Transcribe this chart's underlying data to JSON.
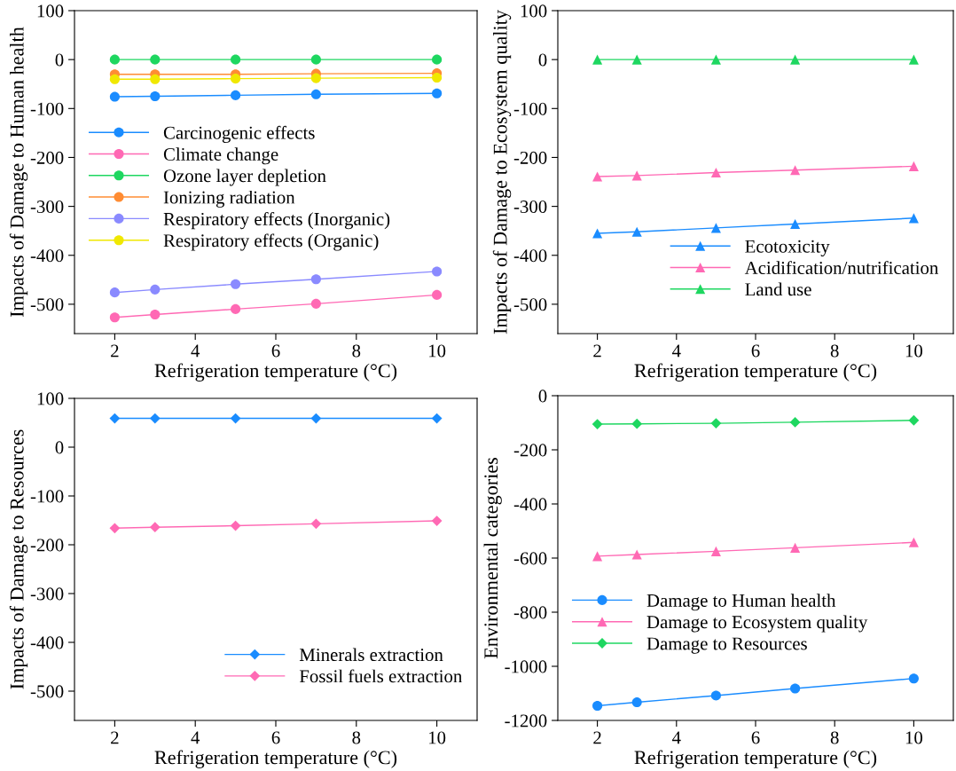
{
  "chart_data": [
    {
      "type": "line",
      "xlabel": "Refrigeration temperature (°C)",
      "ylabel": "Impacts of Damage to Human health",
      "x": [
        2,
        3,
        5,
        7,
        10
      ],
      "xlim": [
        1,
        11
      ],
      "xticks": [
        2,
        4,
        6,
        8,
        10
      ],
      "ylim": [
        -560,
        100
      ],
      "yticks": [
        100,
        0,
        -100,
        -200,
        -300,
        -400,
        -500
      ],
      "marker": "circle",
      "legend": "center left",
      "grid": false,
      "series": [
        {
          "name": "Carcinogenic effects",
          "color": "#1a8cff",
          "values": [
            -76,
            -75,
            -73,
            -71,
            -69
          ]
        },
        {
          "name": "Climate change",
          "color": "#ff69b4",
          "values": [
            -527,
            -521,
            -510,
            -499,
            -481
          ]
        },
        {
          "name": "Ozone layer depletion",
          "color": "#1ed760",
          "values": [
            0,
            0,
            0,
            0,
            0
          ]
        },
        {
          "name": "Ionizing radiation",
          "color": "#ff8c33",
          "values": [
            -30,
            -30,
            -30,
            -29,
            -28
          ]
        },
        {
          "name": "Respiratory effects (Inorganic)",
          "color": "#8a8aff",
          "values": [
            -476,
            -470,
            -459,
            -449,
            -433
          ]
        },
        {
          "name": "Respiratory effects (Organic)",
          "color": "#f0e800",
          "values": [
            -40,
            -40,
            -39,
            -38,
            -37
          ]
        }
      ]
    },
    {
      "type": "line",
      "xlabel": "Refrigeration temperature (°C)",
      "ylabel": "Impacts of Damage to Ecosystem quality",
      "x": [
        2,
        3,
        5,
        7,
        10
      ],
      "xlim": [
        1,
        11
      ],
      "xticks": [
        2,
        4,
        6,
        8,
        10
      ],
      "ylim": [
        -560,
        100
      ],
      "yticks": [
        100,
        0,
        -100,
        -200,
        -300,
        -400,
        -500
      ],
      "marker": "triangle",
      "legend": "lower right",
      "grid": false,
      "series": [
        {
          "name": "Ecotoxicity",
          "color": "#1a8cff",
          "values": [
            -355,
            -352,
            -344,
            -336,
            -324
          ]
        },
        {
          "name": "Acidification/nutrification",
          "color": "#ff69b4",
          "values": [
            -239,
            -237,
            -231,
            -226,
            -218
          ]
        },
        {
          "name": "Land use",
          "color": "#1ed760",
          "values": [
            0,
            0,
            0,
            0,
            0
          ]
        }
      ]
    },
    {
      "type": "line",
      "xlabel": "Refrigeration temperature (°C)",
      "ylabel": "Impacts of Damage to Resources",
      "x": [
        2,
        3,
        5,
        7,
        10
      ],
      "xlim": [
        1,
        11
      ],
      "xticks": [
        2,
        4,
        6,
        8,
        10
      ],
      "ylim": [
        -560,
        100
      ],
      "yticks": [
        100,
        0,
        -100,
        -200,
        -300,
        -400,
        -500
      ],
      "marker": "diamond",
      "legend": "lower right",
      "grid": false,
      "series": [
        {
          "name": "Minerals extraction",
          "color": "#1a8cff",
          "values": [
            59,
            59,
            59,
            59,
            59
          ]
        },
        {
          "name": "Fossil fuels extraction",
          "color": "#ff69b4",
          "values": [
            -166,
            -164,
            -161,
            -157,
            -151
          ]
        }
      ]
    },
    {
      "type": "line",
      "xlabel": "Refrigeration temperature (°C)",
      "ylabel": "Environmental categories",
      "x": [
        2,
        3,
        5,
        7,
        10
      ],
      "xlim": [
        1,
        11
      ],
      "xticks": [
        2,
        4,
        6,
        8,
        10
      ],
      "ylim": [
        -1200,
        0
      ],
      "yticks": [
        0,
        -200,
        -400,
        -600,
        -800,
        -1000,
        -1200
      ],
      "legend": "lower left",
      "grid": false,
      "series": [
        {
          "name": "Damage to Human health",
          "color": "#1a8cff",
          "marker": "circle",
          "values": [
            -1146,
            -1133,
            -1108,
            -1082,
            -1045
          ]
        },
        {
          "name": "Damage to Ecosystem quality",
          "color": "#ff69b4",
          "marker": "triangle",
          "values": [
            -593,
            -587,
            -575,
            -562,
            -542
          ]
        },
        {
          "name": "Damage to Resources",
          "color": "#1ed760",
          "marker": "diamond",
          "values": [
            -105,
            -104,
            -102,
            -98,
            -91
          ]
        }
      ]
    }
  ]
}
